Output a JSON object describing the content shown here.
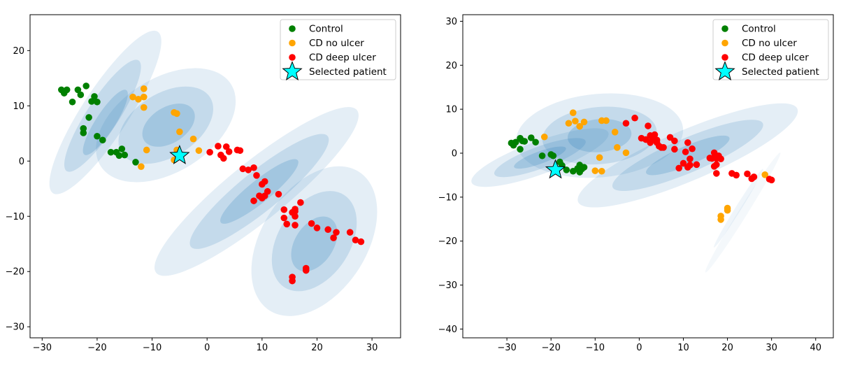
{
  "figure": {
    "legend_entries": [
      "Control",
      "CD no ulcer",
      "CD deep ulcer",
      "Selected patient"
    ],
    "marker_colors": {
      "Control": "#008000",
      "CD no ulcer": "#FFA500",
      "CD deep ulcer": "#FF0000",
      "Selected patient": "#00FFFF",
      "ellipse": "#1f77b4"
    }
  },
  "chart_data": [
    {
      "type": "scatter",
      "title": "",
      "xlabel": "",
      "ylabel": "",
      "xlim": [
        -32.2,
        35.2
      ],
      "ylim": [
        -32.0,
        26.5
      ],
      "xticks": [
        -30,
        -20,
        -10,
        0,
        10,
        20,
        30
      ],
      "yticks": [
        -30,
        -20,
        -10,
        0,
        10,
        20
      ],
      "grid": false,
      "legend_position": "top-right",
      "series": [
        {
          "name": "Control",
          "color": "#008000",
          "points": [
            [
              -26.5,
              12.9
            ],
            [
              -26.0,
              12.3
            ],
            [
              -25.5,
              12.9
            ],
            [
              -24.5,
              10.7
            ],
            [
              -23.5,
              12.9
            ],
            [
              -23.0,
              12.0
            ],
            [
              -22.0,
              13.6
            ],
            [
              -21.5,
              7.9
            ],
            [
              -21.0,
              10.8
            ],
            [
              -20.5,
              11.7
            ],
            [
              -20.0,
              10.7
            ],
            [
              -22.5,
              5.9
            ],
            [
              -22.5,
              5.1
            ],
            [
              -20.0,
              4.5
            ],
            [
              -19.0,
              3.8
            ],
            [
              -17.5,
              1.6
            ],
            [
              -16.5,
              1.6
            ],
            [
              -16.0,
              1.0
            ],
            [
              -15.5,
              2.2
            ],
            [
              -15.0,
              1.1
            ],
            [
              -13.0,
              -0.2
            ]
          ]
        },
        {
          "name": "CD no ulcer",
          "color": "#FFA500",
          "points": [
            [
              -13.5,
              11.6
            ],
            [
              -12.5,
              11.2
            ],
            [
              -11.5,
              11.6
            ],
            [
              -11.5,
              13.1
            ],
            [
              -11.5,
              9.7
            ],
            [
              -11.0,
              2.0
            ],
            [
              -12.0,
              -1.0
            ],
            [
              -6.0,
              8.8
            ],
            [
              -5.5,
              8.6
            ],
            [
              -5.0,
              5.3
            ],
            [
              -5.5,
              2.0
            ],
            [
              -6.0,
              0.2
            ],
            [
              -2.5,
              4.0
            ],
            [
              -1.5,
              1.9
            ]
          ]
        },
        {
          "name": "CD deep ulcer",
          "color": "#FF0000",
          "points": [
            [
              0.5,
              1.6
            ],
            [
              2.0,
              2.7
            ],
            [
              2.5,
              1.1
            ],
            [
              3.0,
              0.5
            ],
            [
              3.5,
              2.6
            ],
            [
              4.0,
              1.7
            ],
            [
              5.5,
              2.0
            ],
            [
              6.0,
              1.9
            ],
            [
              6.5,
              -1.4
            ],
            [
              7.5,
              -1.6
            ],
            [
              8.5,
              -1.2
            ],
            [
              9.0,
              -2.6
            ],
            [
              10.0,
              -4.2
            ],
            [
              10.5,
              -3.7
            ],
            [
              11.0,
              -5.5
            ],
            [
              8.5,
              -7.2
            ],
            [
              9.5,
              -6.3
            ],
            [
              10.0,
              -6.7
            ],
            [
              10.5,
              -6.3
            ],
            [
              13.0,
              -6.0
            ],
            [
              14.0,
              -8.8
            ],
            [
              14.0,
              -10.3
            ],
            [
              14.5,
              -11.4
            ],
            [
              15.5,
              -9.3
            ],
            [
              16.0,
              -8.7
            ],
            [
              16.0,
              -9.1
            ],
            [
              16.0,
              -10.0
            ],
            [
              16.0,
              -11.6
            ],
            [
              17.0,
              -7.5
            ],
            [
              19.0,
              -11.3
            ],
            [
              20.0,
              -12.1
            ],
            [
              22.0,
              -12.4
            ],
            [
              23.0,
              -13.9
            ],
            [
              23.5,
              -12.9
            ],
            [
              26.0,
              -12.9
            ],
            [
              27.0,
              -14.3
            ],
            [
              28.0,
              -14.6
            ],
            [
              18.0,
              -19.4
            ],
            [
              18.0,
              -19.8
            ],
            [
              15.5,
              -21.0
            ],
            [
              15.5,
              -21.7
            ]
          ]
        },
        {
          "name": "Selected patient",
          "color": "#00FFFF",
          "marker": "star",
          "points": [
            [
              -5.0,
              1.0
            ]
          ]
        }
      ],
      "ellipses": [
        {
          "center": [
            -18.5,
            8.8
          ],
          "width": 35.0,
          "height": 8.5,
          "angle_deg": -57,
          "opacity": 0.12
        },
        {
          "center": [
            -19.0,
            8.2
          ],
          "width": 24.0,
          "height": 5.8,
          "angle_deg": -57,
          "opacity": 0.16
        },
        {
          "center": [
            -18.5,
            7.0
          ],
          "width": 14.0,
          "height": 3.5,
          "angle_deg": -57,
          "opacity": 0.2
        },
        {
          "center": [
            -7.5,
            6.5
          ],
          "width": 28.0,
          "height": 17.0,
          "angle_deg": -32,
          "opacity": 0.12
        },
        {
          "center": [
            -7.5,
            6.5
          ],
          "width": 19.0,
          "height": 11.5,
          "angle_deg": -32,
          "opacity": 0.16
        },
        {
          "center": [
            -7.0,
            6.5
          ],
          "width": 10.5,
          "height": 6.5,
          "angle_deg": -32,
          "opacity": 0.2
        },
        {
          "center": [
            9.0,
            -5.5
          ],
          "width": 47.0,
          "height": 10.5,
          "angle_deg": -39,
          "opacity": 0.12
        },
        {
          "center": [
            9.5,
            -5.5
          ],
          "width": 32.0,
          "height": 7.2,
          "angle_deg": -39,
          "opacity": 0.16
        },
        {
          "center": [
            9.5,
            -5.5
          ],
          "width": 18.0,
          "height": 4.0,
          "angle_deg": -39,
          "opacity": 0.2
        },
        {
          "center": [
            19.5,
            -14.5
          ],
          "width": 30.0,
          "height": 19.0,
          "angle_deg": -57,
          "opacity": 0.12
        },
        {
          "center": [
            19.5,
            -14.5
          ],
          "width": 20.0,
          "height": 13.0,
          "angle_deg": -57,
          "opacity": 0.16
        },
        {
          "center": [
            19.5,
            -15.0
          ],
          "width": 11.0,
          "height": 7.0,
          "angle_deg": -57,
          "opacity": 0.2
        }
      ]
    },
    {
      "type": "scatter",
      "title": "",
      "xlabel": "",
      "ylabel": "",
      "xlim": [
        -40.0,
        44.0
      ],
      "ylim": [
        -42.0,
        31.5
      ],
      "xticks": [
        -30,
        -20,
        -10,
        0,
        10,
        20,
        30,
        40
      ],
      "yticks": [
        -40,
        -30,
        -20,
        -10,
        0,
        10,
        20,
        30
      ],
      "grid": false,
      "legend_position": "top-right",
      "series": [
        {
          "name": "Control",
          "color": "#008000",
          "points": [
            [
              -29.0,
              2.3
            ],
            [
              -28.5,
              1.8
            ],
            [
              -28.0,
              2.5
            ],
            [
              -27.0,
              3.4
            ],
            [
              -26.5,
              2.8
            ],
            [
              -26.0,
              2.7
            ],
            [
              -27.0,
              0.9
            ],
            [
              -24.5,
              3.5
            ],
            [
              -23.5,
              2.5
            ],
            [
              -22.0,
              -0.6
            ],
            [
              -20.0,
              -0.3
            ],
            [
              -19.5,
              -0.6
            ],
            [
              -18.0,
              -2.0
            ],
            [
              -17.5,
              -2.8
            ],
            [
              -16.5,
              -3.8
            ],
            [
              -15.0,
              -4.1
            ],
            [
              -14.0,
              -3.5
            ],
            [
              -13.5,
              -4.3
            ],
            [
              -13.5,
              -2.7
            ],
            [
              -13.0,
              -3.6
            ],
            [
              -12.5,
              -3.2
            ],
            [
              -13.0,
              -3.2
            ]
          ]
        },
        {
          "name": "CD no ulcer",
          "color": "#FFA500",
          "points": [
            [
              -21.5,
              3.7
            ],
            [
              -16.0,
              6.8
            ],
            [
              -15.0,
              9.2
            ],
            [
              -14.5,
              7.3
            ],
            [
              -13.5,
              6.1
            ],
            [
              -12.5,
              7.1
            ],
            [
              -8.5,
              7.4
            ],
            [
              -7.5,
              7.4
            ],
            [
              -5.5,
              4.8
            ],
            [
              -5.0,
              1.3
            ],
            [
              -3.0,
              0.1
            ],
            [
              -9.0,
              -1.0
            ],
            [
              -10.0,
              -4.0
            ],
            [
              -8.5,
              -4.1
            ],
            [
              28.5,
              -4.9
            ],
            [
              20.0,
              -12.5
            ],
            [
              20.0,
              -13.0
            ],
            [
              18.5,
              -14.3
            ],
            [
              18.5,
              -15.1
            ]
          ]
        },
        {
          "name": "CD deep ulcer",
          "color": "#FF0000",
          "points": [
            [
              -3.0,
              6.8
            ],
            [
              -1.0,
              8.0
            ],
            [
              0.5,
              3.4
            ],
            [
              1.5,
              3.1
            ],
            [
              2.0,
              6.2
            ],
            [
              2.5,
              2.4
            ],
            [
              2.5,
              4.0
            ],
            [
              3.0,
              3.1
            ],
            [
              3.5,
              4.2
            ],
            [
              4.0,
              2.4
            ],
            [
              4.0,
              3.0
            ],
            [
              4.5,
              1.6
            ],
            [
              5.0,
              1.3
            ],
            [
              5.5,
              1.3
            ],
            [
              7.0,
              3.6
            ],
            [
              8.0,
              2.8
            ],
            [
              8.0,
              0.9
            ],
            [
              9.0,
              -3.4
            ],
            [
              10.0,
              -2.3
            ],
            [
              10.5,
              0.3
            ],
            [
              11.0,
              2.4
            ],
            [
              11.5,
              -2.7
            ],
            [
              11.0,
              -3.2
            ],
            [
              11.5,
              -1.3
            ],
            [
              12.0,
              1.0
            ],
            [
              13.0,
              -2.6
            ],
            [
              16.0,
              -1.1
            ],
            [
              16.5,
              -1.2
            ],
            [
              17.0,
              0.1
            ],
            [
              17.0,
              -3.0
            ],
            [
              17.5,
              -2.6
            ],
            [
              17.5,
              -4.6
            ],
            [
              17.5,
              -1.2
            ],
            [
              18.0,
              -0.6
            ],
            [
              18.5,
              -1.3
            ],
            [
              21.0,
              -4.6
            ],
            [
              22.0,
              -5.0
            ],
            [
              24.5,
              -4.7
            ],
            [
              25.5,
              -5.8
            ],
            [
              26.0,
              -5.4
            ],
            [
              29.5,
              -5.9
            ],
            [
              30.0,
              -6.1
            ]
          ]
        },
        {
          "name": "Selected patient",
          "color": "#00FFFF",
          "marker": "star",
          "points": [
            [
              -19.0,
              -3.8
            ]
          ]
        }
      ],
      "ellipses": [
        {
          "center": [
            -22.5,
            -1.0
          ],
          "width": 33.0,
          "height": 7.5,
          "angle_deg": -20,
          "opacity": 0.12
        },
        {
          "center": [
            -22.5,
            -1.0
          ],
          "width": 22.0,
          "height": 5.0,
          "angle_deg": -20,
          "opacity": 0.16
        },
        {
          "center": [
            -22.5,
            -1.0
          ],
          "width": 12.5,
          "height": 2.8,
          "angle_deg": -20,
          "opacity": 0.2
        },
        {
          "center": [
            -9.0,
            4.0
          ],
          "width": 38.0,
          "height": 19.0,
          "angle_deg": -5,
          "opacity": 0.12
        },
        {
          "center": [
            -9.0,
            4.0
          ],
          "width": 26.0,
          "height": 13.0,
          "angle_deg": -5,
          "opacity": 0.16
        },
        {
          "center": [
            -9.0,
            4.0
          ],
          "width": 14.5,
          "height": 7.5,
          "angle_deg": -5,
          "opacity": 0.2
        },
        {
          "center": [
            11.0,
            -0.5
          ],
          "width": 54.0,
          "height": 11.5,
          "angle_deg": -23,
          "opacity": 0.12
        },
        {
          "center": [
            11.0,
            -0.5
          ],
          "width": 37.0,
          "height": 7.8,
          "angle_deg": -23,
          "opacity": 0.16
        },
        {
          "center": [
            11.0,
            -0.5
          ],
          "width": 20.5,
          "height": 4.4,
          "angle_deg": -23,
          "opacity": 0.2
        },
        {
          "center": [
            23.5,
            -13.5
          ],
          "width": 32.0,
          "height": 2.0,
          "angle_deg": -58,
          "opacity": 0.05
        },
        {
          "center": [
            22.5,
            -12.5
          ],
          "width": 21.0,
          "height": 1.3,
          "angle_deg": -58,
          "opacity": 0.07
        }
      ]
    }
  ]
}
